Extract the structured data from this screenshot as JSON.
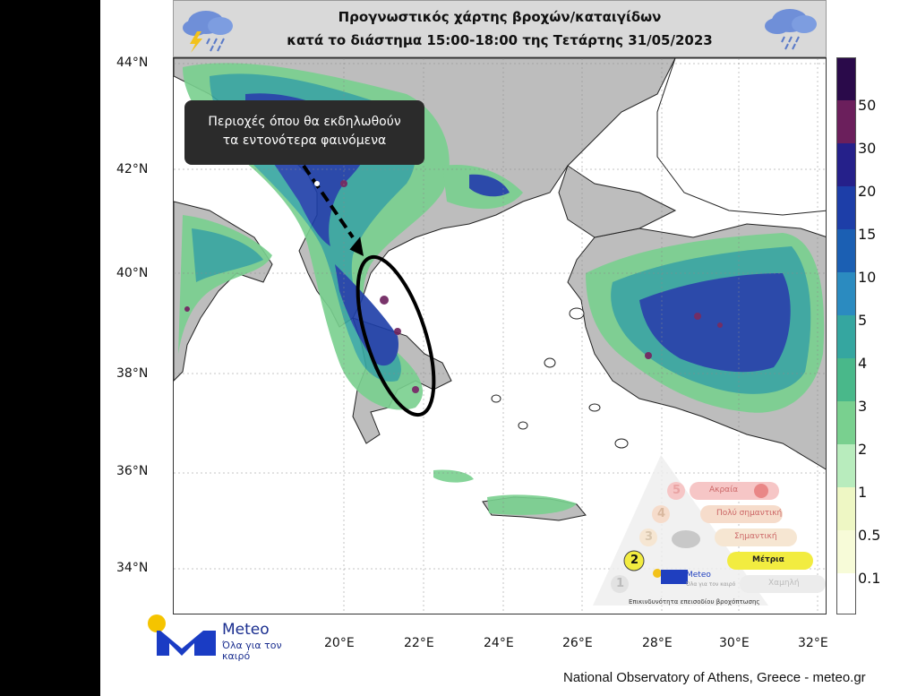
{
  "title": {
    "line1": "Προγνωστικός χάρτης βροχών/καταιγίδων",
    "line2": "κατά το διάστημα 15:00-18:00 της Τετάρτης 31/05/2023",
    "icon_left": "storm-cloud-icon",
    "icon_right": "rain-cloud-icon"
  },
  "map": {
    "lat_labels": [
      "44°N",
      "42°N",
      "40°N",
      "38°N",
      "36°N",
      "34°N"
    ],
    "lon_labels": [
      "20°E",
      "22°E",
      "24°E",
      "26°E",
      "28°E",
      "30°E",
      "32°E"
    ],
    "callout_line1": "Περιοχές όπου θα εκδηλωθούν",
    "callout_line2": "τα εντονότερα φαινόμενα",
    "land_color": "#bdbdbd",
    "sea_color": "#ffffff"
  },
  "legend": {
    "labels": [
      "50",
      "30",
      "20",
      "15",
      "10",
      "5",
      "4",
      "3",
      "2",
      "1",
      "0.5",
      "0.1"
    ],
    "colors": [
      "#2a0a4a",
      "#6b1f5c",
      "#25208a",
      "#1d3ea8",
      "#1b5fb3",
      "#2b8bc0",
      "#35a6a0",
      "#49b88a",
      "#79d08f",
      "#b8ecbd",
      "#eef7c4",
      "#f7fbd8",
      "#ffffff"
    ]
  },
  "pyramid": {
    "levels": [
      {
        "num": "5",
        "label": "Ακραία"
      },
      {
        "num": "4",
        "label": "Πολύ σημαντική"
      },
      {
        "num": "3",
        "label": "Σημαντική"
      },
      {
        "num": "2",
        "label": "Μέτρια"
      },
      {
        "num": "1",
        "label": "Χαμηλή"
      }
    ],
    "caption": "Επικινδυνότητα επεισοδίου βροχόπτωσης",
    "logo_text": "Meteo",
    "logo_sub": "Όλα για τον καιρό"
  },
  "branding": {
    "brand": "Meteo",
    "tagline": "Όλα για τον καιρό",
    "credit": "National Observatory of Athens, Greece - meteo.gr"
  }
}
